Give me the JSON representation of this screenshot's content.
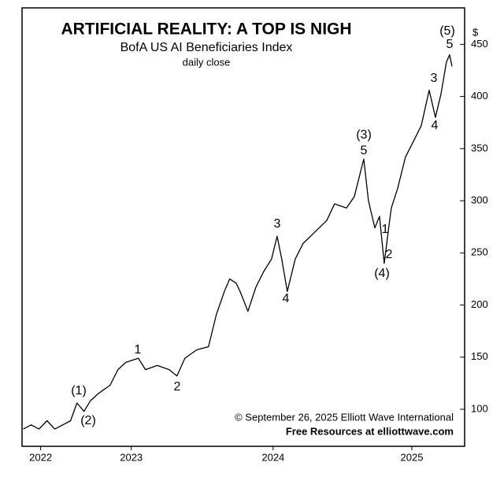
{
  "chart_data": {
    "type": "line",
    "title": "ARTIFICIAL REALITY: A TOP IS NIGH",
    "subtitle": "BofA US AI Beneficiaries Index",
    "note": "daily close",
    "y_unit": "$",
    "footer": [
      "© September 26, 2025  Elliott Wave International",
      "Free Resources at elliottwave.com"
    ],
    "x": [
      2022.739,
      2022.794,
      2022.85,
      2022.906,
      2022.961,
      2023.017,
      2023.072,
      2023.117,
      2023.167,
      2023.211,
      2023.267,
      2023.35,
      2023.406,
      2023.461,
      2023.55,
      2023.6,
      2023.683,
      2023.767,
      2023.822,
      2023.878,
      2023.961,
      2024.044,
      2024.1,
      2024.156,
      2024.194,
      2024.239,
      2024.267,
      2024.322,
      2024.378,
      2024.433,
      2024.489,
      2024.528,
      2024.561,
      2024.6,
      2024.656,
      2024.711,
      2024.794,
      2024.878,
      2024.933,
      2025.017,
      2025.072,
      2025.139,
      2025.172,
      2025.217,
      2025.25,
      2025.283,
      2025.311,
      2025.333,
      2025.378,
      2025.433,
      2025.489,
      2025.544,
      2025.6,
      2025.644,
      2025.683,
      2025.722,
      2025.744,
      2025.761
    ],
    "series": [
      {
        "name": "BofA US AI Beneficiaries Index",
        "color": "#000000",
        "values": [
          81,
          85,
          81,
          89,
          81,
          85,
          89,
          106,
          98,
          108,
          115,
          123,
          138,
          145,
          149,
          138,
          142,
          138,
          132,
          149,
          157,
          160,
          191,
          213,
          225,
          221,
          213,
          194,
          217,
          232,
          244,
          266,
          244,
          213,
          244,
          259,
          270,
          281,
          297,
          293,
          304,
          340,
          300,
          274,
          285,
          240,
          270,
          293,
          312,
          342,
          357,
          372,
          406,
          380,
          402,
          433,
          440,
          429
        ]
      }
    ],
    "annotations": [
      "(1)",
      "(2)",
      "1",
      "2",
      "3",
      "4",
      "(3)",
      "5",
      "1",
      "2",
      "(4)",
      "3",
      "4",
      "(5)",
      "5"
    ],
    "xlim": [
      2022.73,
      2025.85
    ],
    "xticks": [
      {
        "value": 2022.861,
        "label": "2022"
      },
      {
        "value": 2023.5,
        "label": "2023"
      },
      {
        "value": 2024.5,
        "label": "2024"
      },
      {
        "value": 2025.478,
        "label": "2025"
      }
    ],
    "ylim": [
      64.5,
      485
    ],
    "yticks": [
      100,
      150,
      200,
      250,
      300,
      350,
      400,
      450
    ]
  }
}
